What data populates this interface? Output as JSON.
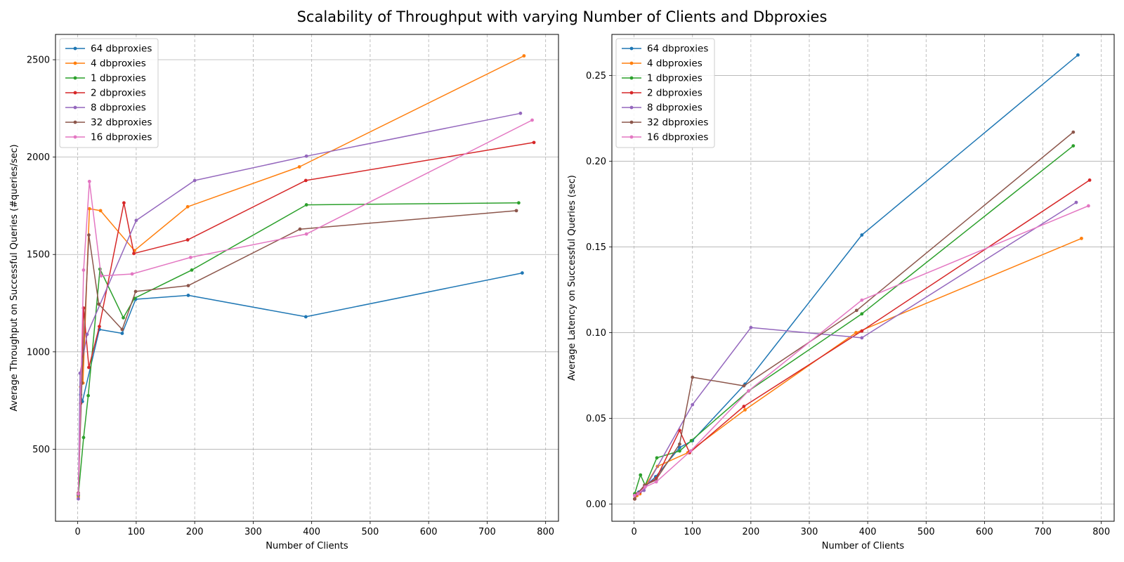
{
  "figure": {
    "title": "Scalability of Throughput with varying Number of Clients and Dbproxies"
  },
  "series_colors": {
    "64 dbproxies": "#1f77b4",
    "4 dbproxies": "#ff7f0e",
    "1 dbproxies": "#2ca02c",
    "2 dbproxies": "#d62728",
    "8 dbproxies": "#9467bd",
    "32 dbproxies": "#8c564b",
    "16 dbproxies": "#e377c2"
  },
  "chart_data": [
    {
      "type": "line",
      "title": "",
      "xlabel": "Number of Clients",
      "ylabel": "Average Throughput on Successful Queries (#queries/sec)",
      "xlim": [
        -38,
        822
      ],
      "ylim": [
        130,
        2630
      ],
      "xticks": [
        0,
        100,
        200,
        300,
        400,
        500,
        600,
        700,
        800
      ],
      "yticks": [
        500,
        1000,
        1500,
        2000,
        2500
      ],
      "grid": "x dashed, y solid",
      "legend_position": "upper left",
      "series": [
        {
          "name": "64 dbproxies",
          "x": [
            1,
            5,
            8,
            37,
            76,
            99,
            189,
            390,
            760
          ],
          "y": [
            265,
            780,
            745,
            1115,
            1095,
            1270,
            1290,
            1180,
            1405
          ]
        },
        {
          "name": "4 dbproxies",
          "x": [
            1,
            5,
            9,
            20,
            39,
            97,
            188,
            379,
            763
          ],
          "y": [
            255,
            820,
            840,
            1735,
            1725,
            1520,
            1745,
            1950,
            2520
          ]
        },
        {
          "name": "1 dbproxies",
          "x": [
            1,
            10,
            18,
            38,
            78,
            97,
            195,
            391,
            754
          ],
          "y": [
            265,
            560,
            775,
            1425,
            1175,
            1275,
            1420,
            1755,
            1765
          ]
        },
        {
          "name": "2 dbproxies",
          "x": [
            1,
            5,
            10,
            19,
            37,
            79,
            96,
            188,
            390,
            780
          ],
          "y": [
            270,
            735,
            1225,
            920,
            1130,
            1765,
            1505,
            1575,
            1880,
            2075
          ]
        },
        {
          "name": "8 dbproxies",
          "x": [
            1,
            4,
            16,
            100,
            200,
            391,
            757
          ],
          "y": [
            245,
            890,
            1090,
            1675,
            1880,
            2005,
            2225
          ]
        },
        {
          "name": "32 dbproxies",
          "x": [
            1,
            7,
            19,
            36,
            76,
            99,
            189,
            380,
            750
          ],
          "y": [
            275,
            840,
            1600,
            1245,
            1115,
            1310,
            1340,
            1630,
            1725
          ]
        },
        {
          "name": "16 dbproxies",
          "x": [
            1,
            10,
            20,
            40,
            93,
            193,
            391,
            777
          ],
          "y": [
            270,
            1420,
            1875,
            1390,
            1400,
            1485,
            1605,
            2190
          ]
        }
      ]
    },
    {
      "type": "line",
      "title": "",
      "xlabel": "Number of Clients",
      "ylabel": "Average Latency on Successful Queries (sec)",
      "xlim": [
        -38,
        822
      ],
      "ylim": [
        -0.01,
        0.274
      ],
      "xticks": [
        0,
        100,
        200,
        300,
        400,
        500,
        600,
        700,
        800
      ],
      "yticks": [
        0.0,
        0.05,
        0.1,
        0.15,
        0.2,
        0.25
      ],
      "ytick_labels": [
        "0.00",
        "0.05",
        "0.10",
        "0.15",
        "0.20",
        "0.25"
      ],
      "grid": "x dashed, y solid",
      "legend_position": "upper left",
      "series": [
        {
          "name": "64 dbproxies",
          "x": [
            1,
            8,
            18,
            37,
            78,
            100,
            190,
            390,
            760
          ],
          "y": [
            0.003,
            0.007,
            0.01,
            0.016,
            0.033,
            0.037,
            0.07,
            0.157,
            0.262
          ]
        },
        {
          "name": "4 dbproxies",
          "x": [
            1,
            5,
            10,
            20,
            40,
            92,
            190,
            380,
            766
          ],
          "y": [
            0.003,
            0.005,
            0.006,
            0.011,
            0.022,
            0.03,
            0.055,
            0.1,
            0.155
          ]
        },
        {
          "name": "1 dbproxies",
          "x": [
            1,
            11,
            19,
            39,
            78,
            98,
            196,
            390,
            752
          ],
          "y": [
            0.006,
            0.017,
            0.011,
            0.027,
            0.031,
            0.037,
            0.066,
            0.111,
            0.209
          ]
        },
        {
          "name": "2 dbproxies",
          "x": [
            1,
            5,
            10,
            20,
            38,
            78,
            95,
            188,
            390,
            780
          ],
          "y": [
            0.003,
            0.006,
            0.007,
            0.011,
            0.015,
            0.043,
            0.03,
            0.057,
            0.101,
            0.189
          ]
        },
        {
          "name": "8 dbproxies",
          "x": [
            1,
            17,
            100,
            200,
            390,
            757
          ],
          "y": [
            0.005,
            0.008,
            0.058,
            0.103,
            0.097,
            0.176
          ]
        },
        {
          "name": "32 dbproxies",
          "x": [
            1,
            5,
            18,
            37,
            78,
            100,
            188,
            381,
            752
          ],
          "y": [
            0.003,
            0.006,
            0.011,
            0.014,
            0.035,
            0.074,
            0.069,
            0.113,
            0.217
          ]
        },
        {
          "name": "16 dbproxies",
          "x": [
            1,
            7,
            19,
            38,
            97,
            196,
            390,
            778
          ],
          "y": [
            0.005,
            0.006,
            0.01,
            0.013,
            0.031,
            0.066,
            0.119,
            0.174
          ]
        }
      ]
    }
  ]
}
